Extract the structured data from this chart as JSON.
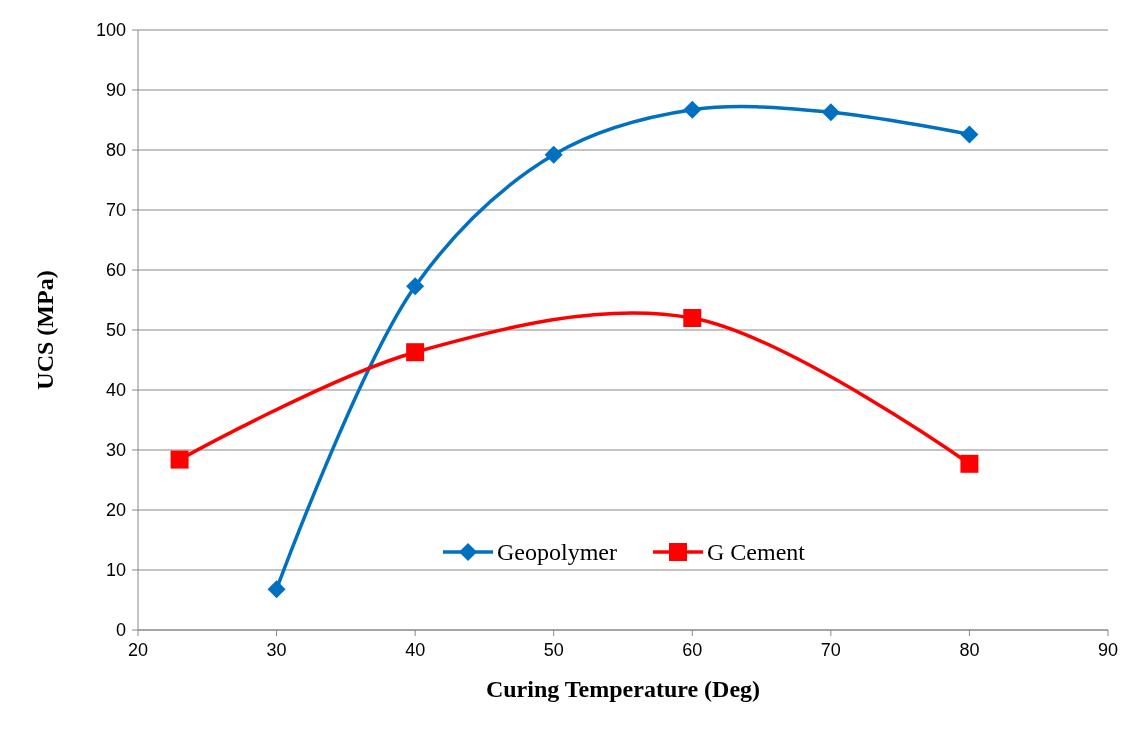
{
  "chart_data": {
    "type": "line",
    "xlabel": "Curing Temperature (Deg)",
    "ylabel": "UCS (MPa)",
    "xlim": [
      20,
      90
    ],
    "xticks": [
      20,
      30,
      40,
      50,
      60,
      70,
      80,
      90
    ],
    "ylim": [
      0,
      100
    ],
    "yticks": [
      0,
      10,
      20,
      30,
      40,
      50,
      60,
      70,
      80,
      90,
      100
    ],
    "grid": "y",
    "legend": "bottom",
    "series": [
      {
        "name": "Geopolymer",
        "color": "#0070c0",
        "marker": "diamond",
        "x": [
          30,
          40,
          50,
          60,
          70,
          80
        ],
        "values": [
          6.8,
          57.3,
          79.2,
          86.7,
          86.3,
          82.6
        ]
      },
      {
        "name": "G Cement",
        "color": "#ff0000",
        "marker": "square",
        "x": [
          23,
          40,
          60,
          80
        ],
        "values": [
          28.4,
          46.3,
          52.0,
          27.7
        ]
      }
    ]
  }
}
